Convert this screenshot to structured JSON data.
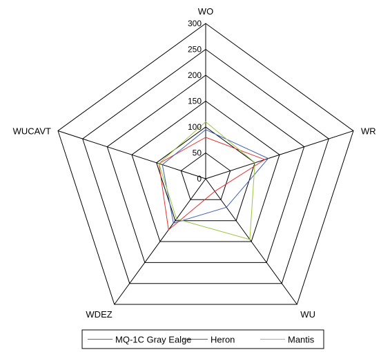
{
  "chart_data": {
    "type": "radar",
    "axes": [
      "WO",
      "WR",
      "WU",
      "WDEZ",
      "WUCAVT"
    ],
    "rlim": [
      0,
      300
    ],
    "ticks": [
      0,
      50,
      100,
      150,
      200,
      250,
      300
    ],
    "tick_labels": [
      "0",
      "50",
      "100",
      "150",
      "200",
      "250",
      "300"
    ],
    "grid": true,
    "legend": "bottom",
    "series": [
      {
        "name": "MQ-1C Gray Ealge",
        "color": "#e8312f",
        "values": [
          80,
          120,
          30,
          122,
          95
        ]
      },
      {
        "name": "Heron",
        "color": "#3f5fb3",
        "values": [
          95,
          127,
          68,
          106,
          88
        ]
      },
      {
        "name": "Mantis",
        "color": "#9bc53d",
        "values": [
          110,
          100,
          145,
          96,
          95
        ]
      }
    ]
  }
}
